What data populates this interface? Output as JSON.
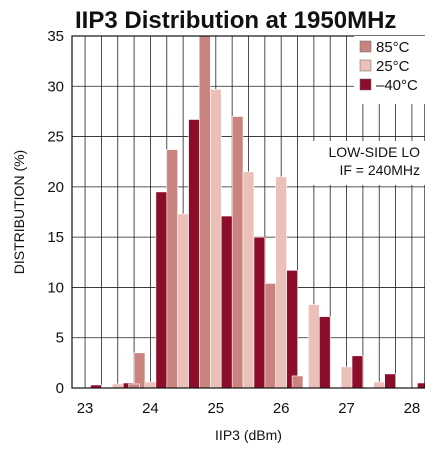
{
  "chart_data": {
    "type": "bar",
    "title": "IIP3 Distribution at 1950MHz",
    "xlabel": "IIP3 (dBm)",
    "ylabel": "DISTRIBUTION (%)",
    "xlim": [
      22.8,
      28.2
    ],
    "ylim": [
      0,
      35
    ],
    "xticks": [
      23,
      24,
      25,
      26,
      27,
      28
    ],
    "yticks": [
      0,
      5,
      10,
      15,
      20,
      25,
      30,
      35
    ],
    "grid": true,
    "legend": "top-right",
    "annotation": [
      "LOW-SIDE LO",
      "IF = 240MHz"
    ],
    "x": [
      23.0,
      23.5,
      24.0,
      24.5,
      25.0,
      25.5,
      26.0,
      26.5,
      27.0,
      27.5,
      28.0
    ],
    "series": [
      {
        "name": "85°C",
        "color": "#c98480",
        "values": [
          0.0,
          0.0,
          3.5,
          23.7,
          35.0,
          27.0,
          10.4,
          0.0,
          0.0,
          0.0,
          0.0
        ]
      },
      {
        "name": "25°C",
        "color": "#ebc0b9",
        "values": [
          0.0,
          0.4,
          0.6,
          17.3,
          29.7,
          21.5,
          21.0,
          8.3,
          2.1,
          0.6,
          0.0
        ]
      },
      {
        "name": "–40°C",
        "color": "#8c0d2a",
        "values": [
          0.3,
          0.5,
          19.5,
          26.7,
          17.1,
          15.0,
          11.7,
          7.1,
          3.2,
          1.4,
          0.5
        ]
      }
    ],
    "extra_bars": [
      {
        "series": "85°C",
        "x": 26.25,
        "value": 1.2
      },
      {
        "series": "85°C",
        "x": 23.75,
        "value": 0.4
      }
    ]
  }
}
